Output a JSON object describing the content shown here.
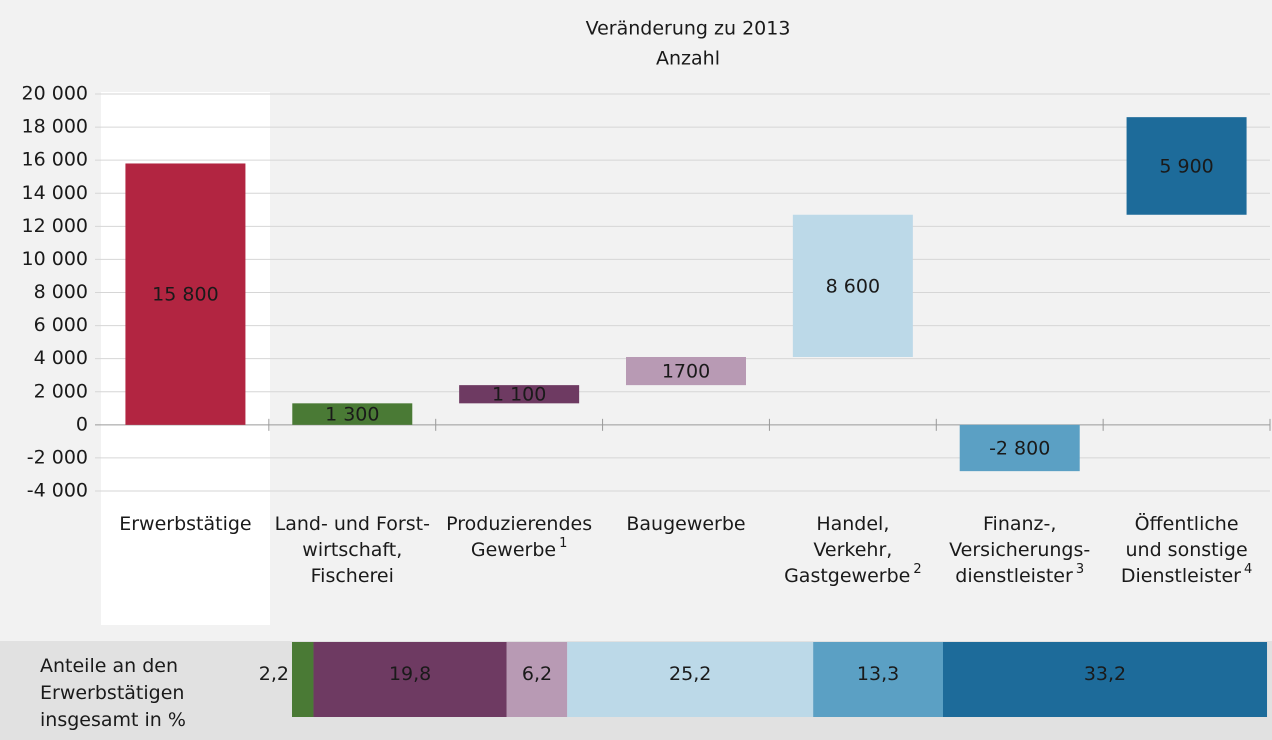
{
  "chart_data": [
    {
      "type": "waterfall",
      "title": "Veränderung zu 2013",
      "subtitle": "Anzahl",
      "categories": [
        "Erwerbstätige",
        "Land- und Forst-\nwirtschaft,\nFischerei",
        "Produzierendes\nGewerbe",
        "Baugewerbe",
        "Handel,\nVerkehr,\nGastgewerbe",
        "Finanz-,\nVersicherungs-\ndienstleister",
        "Öffentliche\nund sonstige\nDienstleister"
      ],
      "footnotes": [
        null,
        null,
        "1",
        null,
        "2",
        "3",
        "4"
      ],
      "values": [
        15800,
        1300,
        1100,
        1700,
        8600,
        -2800,
        5900
      ],
      "value_labels": [
        "15 800",
        "1 300",
        "1 100",
        "1700",
        "8 600",
        "-2 800",
        "5 900"
      ],
      "colors": [
        "#b22541",
        "#4a7a35",
        "#6e3a62",
        "#b89ab4",
        "#bcd9e8",
        "#5ba0c4",
        "#1d6b9a"
      ],
      "ylim": [
        -4000,
        20000
      ],
      "yticks": [
        {
          "value": -4000,
          "label": "-4 000"
        },
        {
          "value": -2000,
          "label": "-2 000"
        },
        0,
        {
          "value": 2000,
          "label": "2 000"
        },
        {
          "value": 4000,
          "label": "4 000"
        },
        {
          "value": 6000,
          "label": "6 000"
        },
        {
          "value": 8000,
          "label": "8 000"
        },
        {
          "value": 10000,
          "label": "10 000"
        },
        {
          "value": 12000,
          "label": "12 000"
        },
        {
          "value": 14000,
          "label": "14 000"
        },
        {
          "value": 16000,
          "label": "16 000"
        },
        {
          "value": 18000,
          "label": "18 000"
        },
        {
          "value": 20000,
          "label": "20 000"
        }
      ],
      "grid": true
    },
    {
      "type": "share_bar",
      "label": "Anteile an den\nErwerbstätigen\ninsgesamt in %",
      "values": [
        2.2,
        19.8,
        6.2,
        25.2,
        13.3,
        33.2
      ],
      "value_labels": [
        "2,2",
        "19,8",
        "6,2",
        "25,2",
        "13,3",
        "33,2"
      ],
      "colors": [
        "#4a7a35",
        "#6e3a62",
        "#b89ab4",
        "#bcd9e8",
        "#5ba0c4",
        "#1d6b9a"
      ]
    }
  ]
}
